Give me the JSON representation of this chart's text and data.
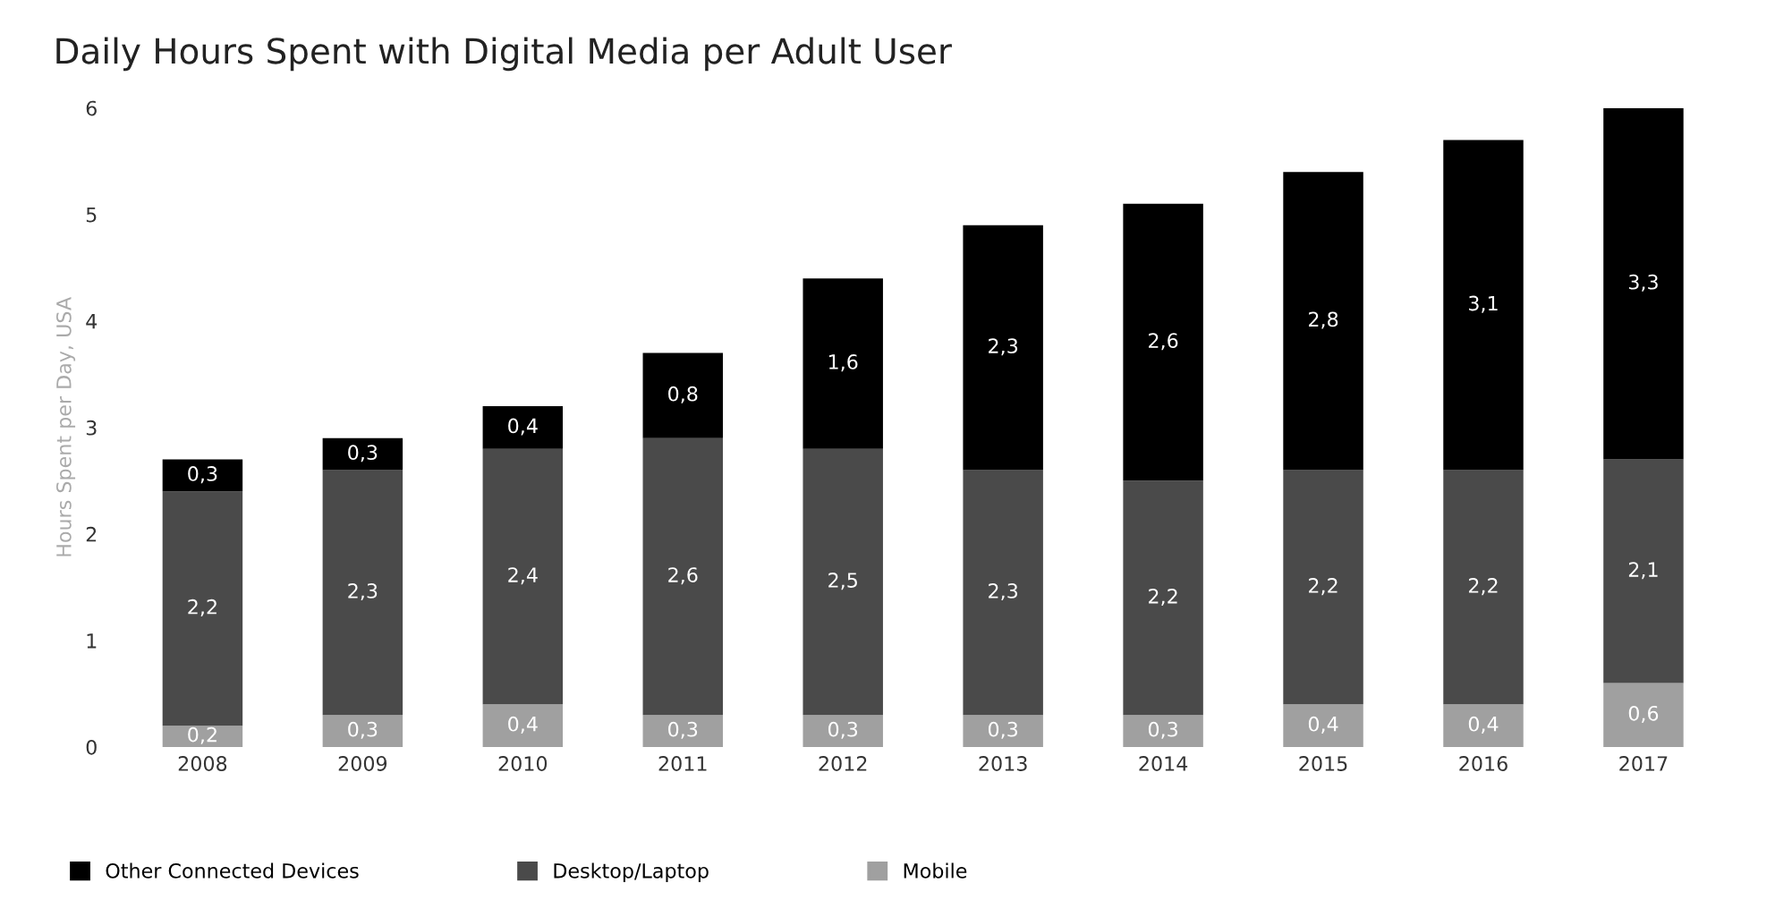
{
  "chart_data": {
    "type": "bar",
    "title": "Daily Hours Spent with Digital Media per Adult User",
    "ylabel": "Hours Spent per Day, USA",
    "categories": [
      "2008",
      "2009",
      "2010",
      "2011",
      "2012",
      "2013",
      "2014",
      "2015",
      "2016",
      "2017"
    ],
    "stacked": true,
    "ylim": [
      0,
      6
    ],
    "yticks": [
      0,
      1,
      2,
      3,
      4,
      5,
      6
    ],
    "grid": false,
    "legend": "bottom left",
    "series": [
      {
        "name": "Mobile",
        "color": "#a0a0a0",
        "values": [
          0.2,
          0.3,
          0.4,
          0.3,
          0.3,
          0.3,
          0.3,
          0.4,
          0.4,
          0.6
        ],
        "value_labels": [
          "0,2",
          "0,3",
          "0,4",
          "0,3",
          "0,3",
          "0,3",
          "0,3",
          "0,4",
          "0,4",
          "0,6"
        ]
      },
      {
        "name": "Desktop/Laptop",
        "color": "#4a4a4a",
        "values": [
          2.2,
          2.3,
          2.4,
          2.6,
          2.5,
          2.3,
          2.2,
          2.2,
          2.2,
          2.1
        ],
        "value_labels": [
          "2,2",
          "2,3",
          "2,4",
          "2,6",
          "2,5",
          "2,3",
          "2,2",
          "2,2",
          "2,2",
          "2,1"
        ]
      },
      {
        "name": "Other Connected Devices",
        "color": "#000000",
        "values": [
          0.3,
          0.3,
          0.4,
          0.8,
          1.6,
          2.3,
          2.6,
          2.8,
          3.1,
          3.3
        ],
        "value_labels": [
          "0,3",
          "0,3",
          "0,4",
          "0,8",
          "1,6",
          "2,3",
          "2,6",
          "2,8",
          "3,1",
          "3,3"
        ]
      }
    ]
  }
}
